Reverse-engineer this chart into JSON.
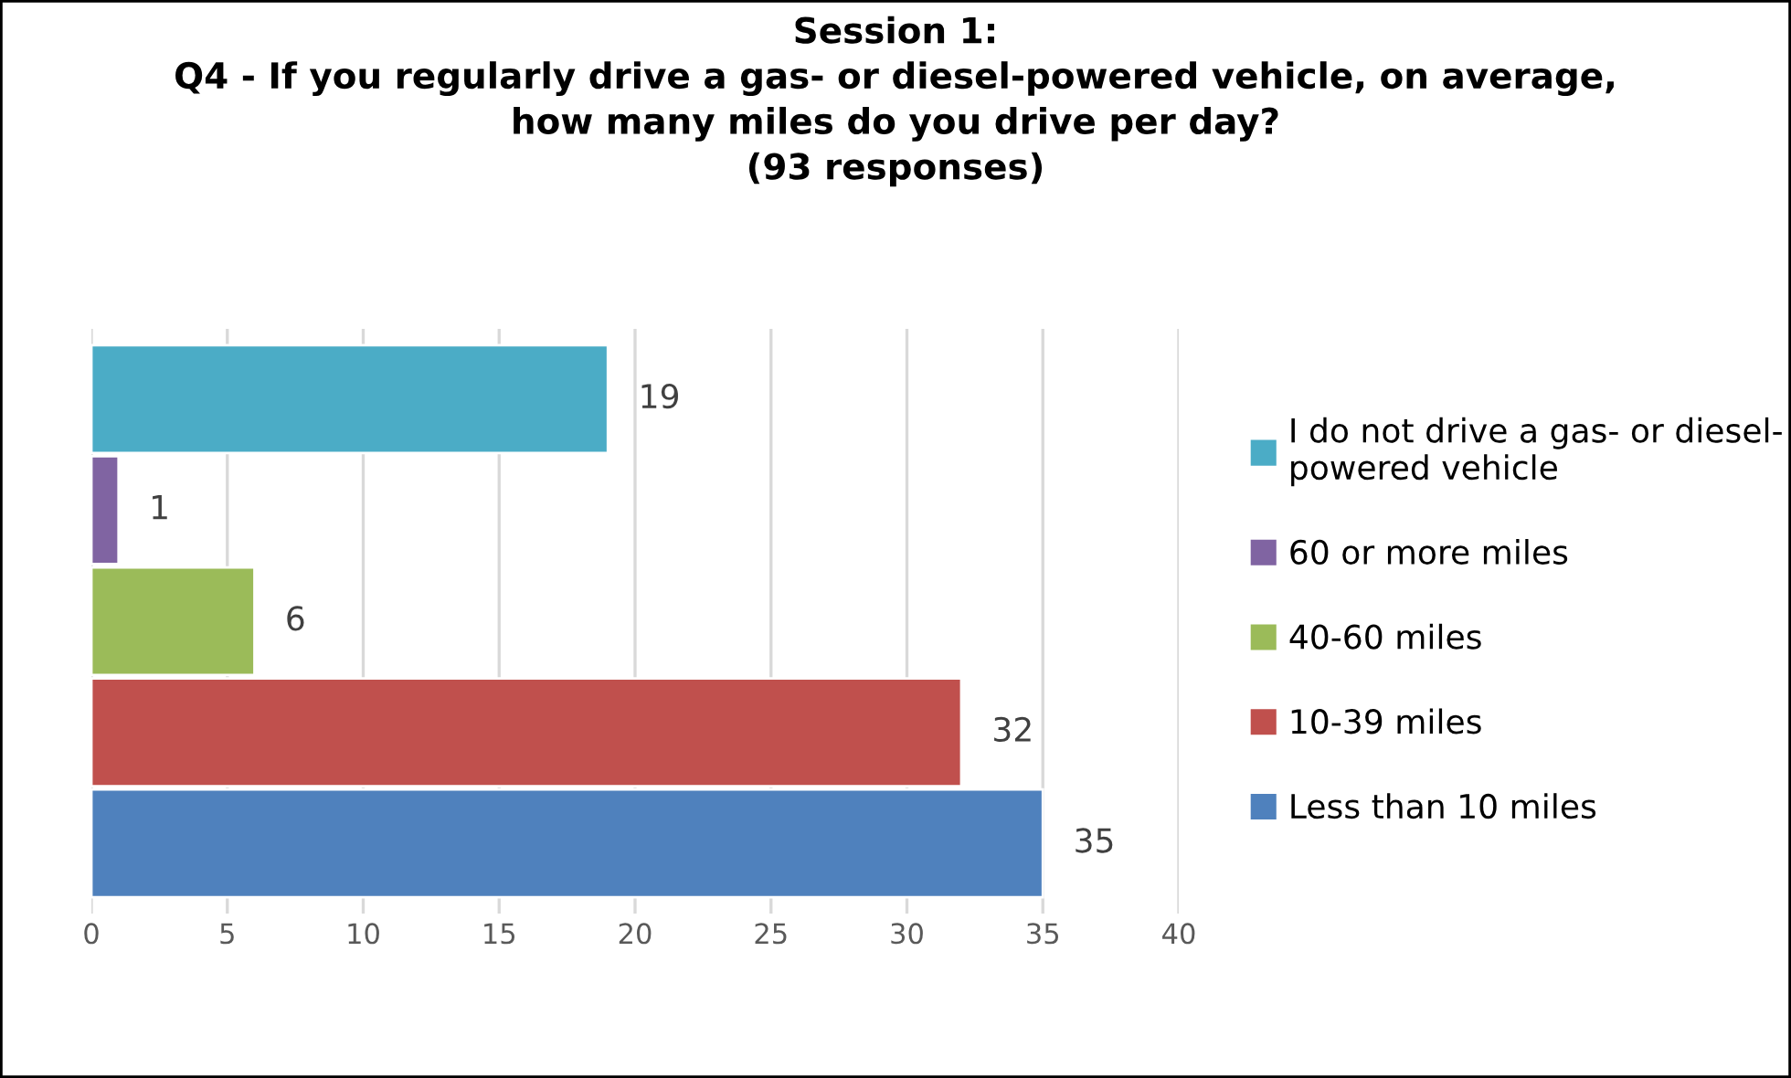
{
  "chart_data": {
    "type": "bar",
    "orientation": "horizontal",
    "title": "Session 1:\nQ4 - If you regularly drive a gas- or diesel-powered vehicle, on average,\nhow many miles do you drive per day?\n(93 responses)",
    "categories": [
      null
    ],
    "series": [
      {
        "name": "Less than 10 miles",
        "color": "#4f81bd",
        "values": [
          35
        ]
      },
      {
        "name": "10-39 miles",
        "color": "#c0504d",
        "values": [
          32
        ]
      },
      {
        "name": "40-60 miles",
        "color": "#9bbb59",
        "values": [
          6
        ]
      },
      {
        "name": "60 or more miles",
        "color": "#8064a2",
        "values": [
          1
        ]
      },
      {
        "name": "I do not drive a gas- or diesel-\npowered vehicle",
        "color": "#4bacc6",
        "values": [
          19
        ]
      }
    ],
    "xlim": [
      0,
      40
    ],
    "xticks": [
      0,
      5,
      10,
      15,
      20,
      25,
      30,
      35,
      40
    ],
    "grid": "x",
    "legend": "right",
    "data_labels": true
  }
}
